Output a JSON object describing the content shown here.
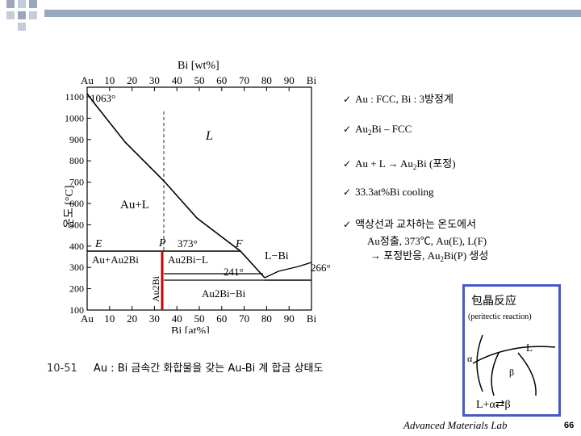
{
  "diagram": {
    "top_axis_title": "Bi [wt%]",
    "bottom_axis_title": "Bi [at%]",
    "y_axis_title": "온도 [°C]",
    "top_ticks": [
      "Au",
      "10",
      "20",
      "30",
      "40",
      "50",
      "60",
      "70",
      "80",
      "90",
      "Bi"
    ],
    "bottom_ticks": [
      "Au",
      "10",
      "20",
      "30",
      "40",
      "50",
      "60",
      "70",
      "80",
      "90",
      "Bi"
    ],
    "y_ticks": [
      "1100",
      "1000",
      "900",
      "800",
      "700",
      "600",
      "500",
      "400",
      "300",
      "200",
      "100"
    ],
    "labels": {
      "au_melt": "1063°",
      "liquid": "L",
      "au_plus_l": "Au+L",
      "point_e": "E",
      "point_p": "P",
      "point_f": "F",
      "peritectic_temp": "373°",
      "l_plus_bi": "L−Bi",
      "eutectic_temp": "266°",
      "au_plus_au2bi": "Au+Au2Bi",
      "au2bi_plus_l": "Au2Bi−L",
      "temp_241": "241°",
      "au2bi_plus_bi": "Au2Bi−Bi",
      "au2bi_vertical": "Au2Bi"
    }
  },
  "bullets": [
    {
      "pre": "Au : FCC,  Bi : 3방정계",
      "sub": "",
      "post": ""
    },
    {
      "pre": "Au",
      "sub": "2",
      "post": "Bi – FCC"
    },
    {
      "pre": "Au + L → Au",
      "sub": "2",
      "post": "Bi (포정)"
    },
    {
      "pre": "33.3at%Bi  cooling",
      "sub": "",
      "post": ""
    },
    {
      "pre": "액상선과 교차하는 온도에서",
      "sub": "",
      "post": ""
    }
  ],
  "note": {
    "line1": "Au정출, 373℃, Au(E), L(F)",
    "line2_pre": "→  포정반응, Au",
    "line2_sub": "2",
    "line2_post": "Bi(P) 생성"
  },
  "caption": {
    "number": "10-51",
    "text": "Au : Bi 금속간 화합물을 갖는 Au-Bi 계 합금 상태도"
  },
  "inset": {
    "title": "包晶反应",
    "subtitle": "(peritectic reaction)",
    "label_l": "L",
    "label_alpha": "α",
    "label_beta": "β",
    "equation": "L+α⇄β"
  },
  "footer": {
    "lab": "Advanced Materials Lab",
    "page": "66"
  },
  "colors": {
    "accent_bar": "#9aa7bd",
    "inset_border": "#4a56c8",
    "compound_line": "#cc0000"
  }
}
